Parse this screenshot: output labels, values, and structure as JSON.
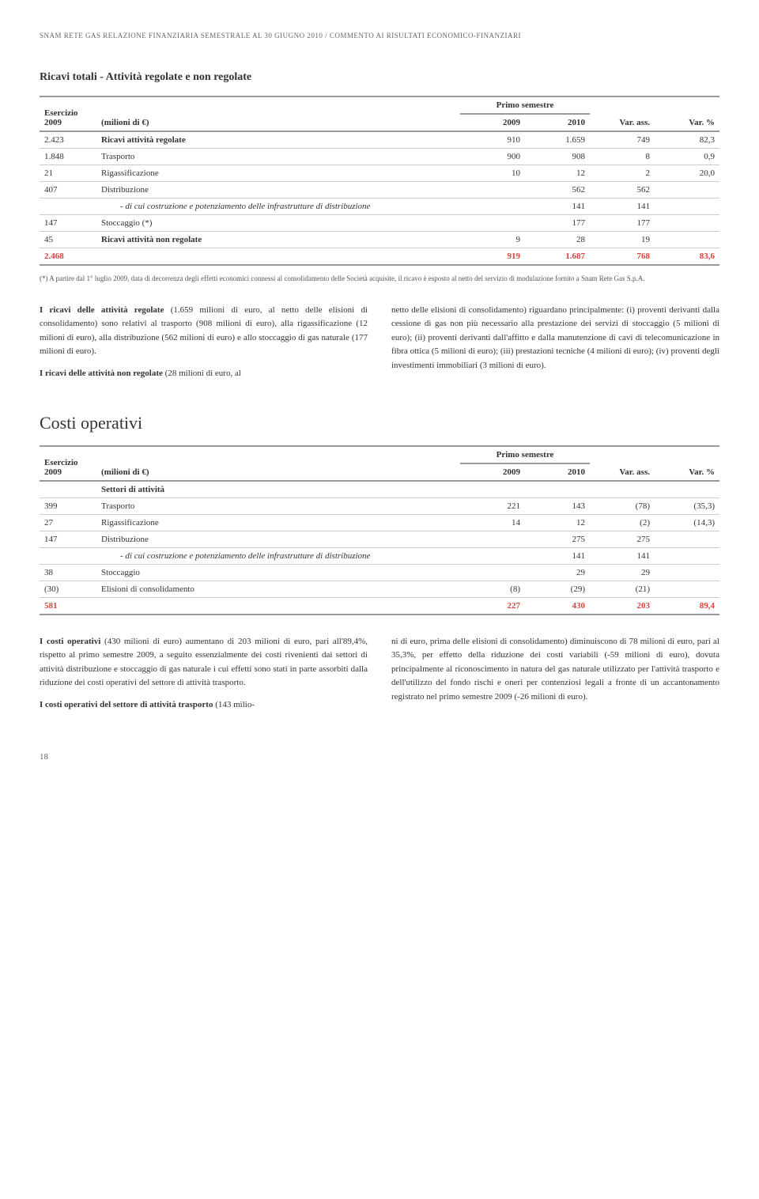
{
  "header": "SNAM RETE GAS RELAZIONE FINANZIARIA SEMESTRALE AL 30 GIUGNO 2010 / COMMENTO AI RISULTATI ECONOMICO-FINANZIARI",
  "table1": {
    "title": "Ricavi totali - Attività regolate e non regolate",
    "unit": "(milioni di €)",
    "col_primo": "Primo semestre",
    "col_vara": "Var. ass.",
    "col_varp": "Var. %",
    "col_ex": "Esercizio 2009",
    "col_2009": "2009",
    "col_2010": "2010",
    "rows": [
      {
        "ex": "2.423",
        "desc": "Ricavi attività regolate",
        "a": "910",
        "b": "1.659",
        "c": "749",
        "d": "82,3",
        "bold": true
      },
      {
        "ex": "1.848",
        "desc": "Trasporto",
        "a": "900",
        "b": "908",
        "c": "8",
        "d": "0,9"
      },
      {
        "ex": "21",
        "desc": "Rigassificazione",
        "a": "10",
        "b": "12",
        "c": "2",
        "d": "20,0"
      },
      {
        "ex": "407",
        "desc": "Distribuzione",
        "a": "",
        "b": "562",
        "c": "562",
        "d": ""
      },
      {
        "ex": "",
        "desc": "- di cui costruzione e potenziamento delle infrastrutture di distribuzione",
        "a": "",
        "b": "141",
        "c": "141",
        "d": "",
        "indent": true
      },
      {
        "ex": "147",
        "desc": "Stoccaggio (*)",
        "a": "",
        "b": "177",
        "c": "177",
        "d": ""
      },
      {
        "ex": "45",
        "desc": "Ricavi attività non regolate",
        "a": "9",
        "b": "28",
        "c": "19",
        "d": "",
        "bold": true
      }
    ],
    "total": {
      "ex": "2.468",
      "a": "919",
      "b": "1.687",
      "c": "768",
      "d": "83,6"
    },
    "footnote": "(*) A partire dal 1° luglio 2009, data di decorrenza degli effetti economici connessi al consolidamento delle Società acquisite, il ricavo è esposto al netto del servizio di modulazione fornito a Snam Rete Gas S.p.A."
  },
  "para1": {
    "left": "I ricavi delle attività regolate (1.659 milioni di euro, al netto delle elisioni di consolidamento) sono relativi al trasporto (908 milioni di euro), alla rigassificazione (12 milioni di euro), alla distribuzione (562 milioni di euro) e allo stoccaggio di gas naturale (177 milioni di euro).\n\nI ricavi delle attività non regolate (28 milioni di euro, al",
    "right": "netto delle elisioni di consolidamento) riguardano principalmente: (i) proventi derivanti dalla cessione di gas non più necessario alla prestazione dei servizi di stoccaggio (5 milioni di euro); (ii) proventi derivanti dall'affitto e dalla manutenzione di cavi di telecomunicazione in fibra ottica (5 milioni di euro); (iii) prestazioni tecniche (4 milioni di euro); (iv) proventi degli investimenti immobiliari (3 milioni di euro)."
  },
  "table2": {
    "title": "Costi operativi",
    "unit": "(milioni di €)",
    "col_primo": "Primo semestre",
    "col_vara": "Var. ass.",
    "col_varp": "Var. %",
    "col_ex": "Esercizio 2009",
    "col_2009": "2009",
    "col_2010": "2010",
    "sector_label": "Settori di attività",
    "rows": [
      {
        "ex": "399",
        "desc": "Trasporto",
        "a": "221",
        "b": "143",
        "c": "(78)",
        "d": "(35,3)"
      },
      {
        "ex": "27",
        "desc": "Rigassificazione",
        "a": "14",
        "b": "12",
        "c": "(2)",
        "d": "(14,3)"
      },
      {
        "ex": "147",
        "desc": "Distribuzione",
        "a": "",
        "b": "275",
        "c": "275",
        "d": ""
      },
      {
        "ex": "",
        "desc": "- di cui costruzione e potenziamento delle infrastrutture di distribuzione",
        "a": "",
        "b": "141",
        "c": "141",
        "d": "",
        "indent": true
      },
      {
        "ex": "38",
        "desc": "Stoccaggio",
        "a": "",
        "b": "29",
        "c": "29",
        "d": ""
      },
      {
        "ex": "(30)",
        "desc": "Elisioni di consolidamento",
        "a": "(8)",
        "b": "(29)",
        "c": "(21)",
        "d": ""
      }
    ],
    "total": {
      "ex": "581",
      "a": "227",
      "b": "430",
      "c": "203",
      "d": "89,4"
    }
  },
  "para2": {
    "left": "I costi operativi (430 milioni di euro) aumentano di 203 milioni di euro, pari all'89,4%, rispetto al primo semestre 2009, a seguito essenzialmente dei costi rivenienti dai settori di attività distribuzione e stoccaggio di gas naturale i cui effetti sono stati in parte assorbiti dalla riduzione dei costi operativi del settore di attività trasporto.\n\nI costi operativi del settore di attività trasporto (143 milio-",
    "right": "ni di euro, prima delle elisioni di consolidamento) diminuiscono di 78 milioni di euro, pari al 35,3%, per effetto della riduzione dei costi variabili (-59 milioni di euro), dovuta principalmente al riconoscimento in natura del gas naturale utilizzato per l'attività trasporto e dell'utilizzo del fondo rischi e oneri per contenziosi legali a fronte di un accantonamento registrato nel primo semestre 2009 (-26 milioni di euro)."
  },
  "page_number": "18"
}
